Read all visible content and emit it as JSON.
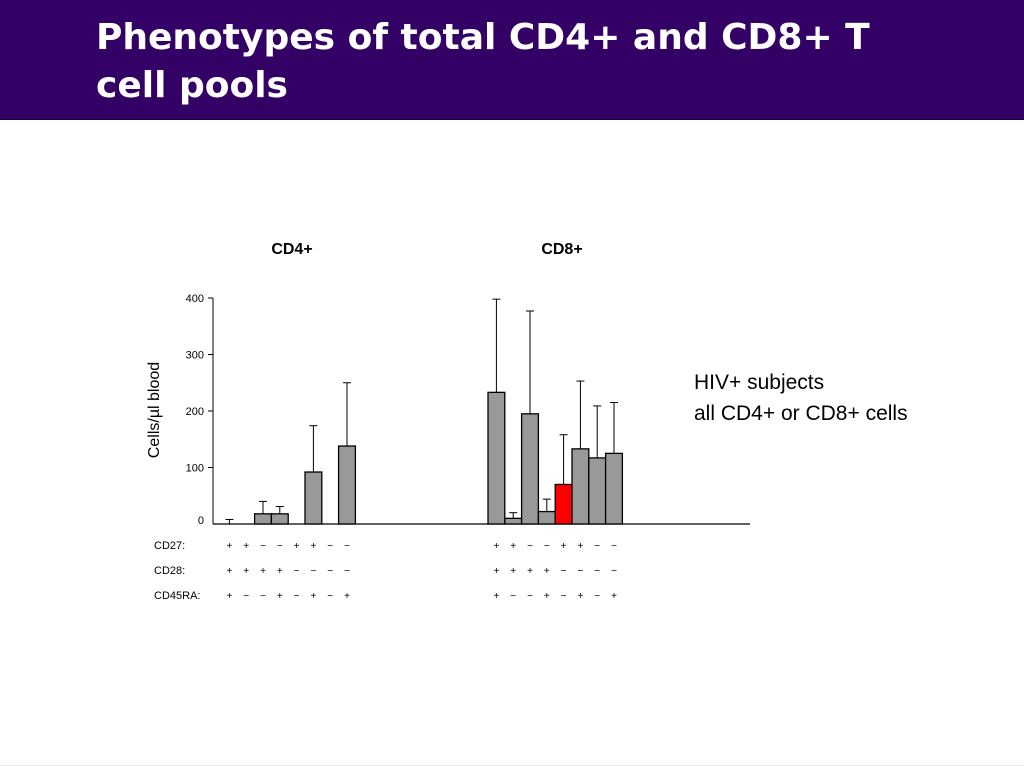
{
  "slide": {
    "title": "Phenotypes of total CD4+ and CD8+ T\ncell pools",
    "annotation_line1": "HIV+ subjects",
    "annotation_line2": "all CD4+ or CD8+ cells"
  },
  "colors": {
    "header": "#330066",
    "bar": "#999999",
    "highlight": "#ff0000"
  },
  "chart_data": {
    "type": "bar",
    "ylabel": "Cells/µl blood",
    "ylim": [
      0,
      400
    ],
    "yticks": [
      0,
      100,
      200,
      300,
      400
    ],
    "grid": false,
    "marker_rows": [
      "CD27:",
      "CD28:",
      "CD45RA:"
    ],
    "panels": [
      {
        "title": "CD4+",
        "markers": [
          [
            "+",
            "+",
            "−",
            "−",
            "+",
            "+",
            "−",
            "−"
          ],
          [
            "+",
            "+",
            "+",
            "+",
            "−",
            "−",
            "−",
            "−"
          ],
          [
            "+",
            "−",
            "−",
            "+",
            "−",
            "+",
            "−",
            "+"
          ]
        ],
        "values": [
          0,
          0,
          18,
          18,
          0,
          92,
          0,
          138
        ],
        "errors": [
          8,
          0,
          22,
          13,
          0,
          82,
          0,
          112
        ],
        "highlight": []
      },
      {
        "title": "CD8+",
        "markers": [
          [
            "+",
            "+",
            "−",
            "−",
            "+",
            "+",
            "−",
            "−"
          ],
          [
            "+",
            "+",
            "+",
            "+",
            "−",
            "−",
            "−",
            "−"
          ],
          [
            "+",
            "−",
            "−",
            "+",
            "−",
            "+",
            "−",
            "+"
          ]
        ],
        "values": [
          233,
          10,
          195,
          22,
          70,
          133,
          117,
          125
        ],
        "errors": [
          165,
          10,
          182,
          22,
          88,
          120,
          92,
          90
        ],
        "highlight": [
          4
        ]
      }
    ]
  }
}
